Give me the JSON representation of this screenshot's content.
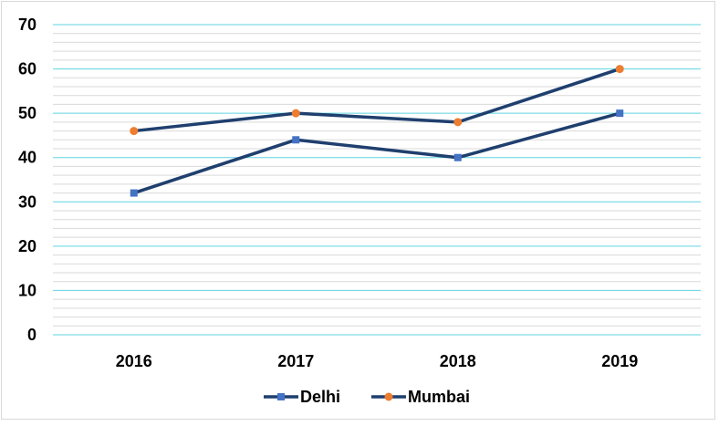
{
  "chart_data": {
    "type": "line",
    "categories": [
      "2016",
      "2017",
      "2018",
      "2019"
    ],
    "series": [
      {
        "name": "Delhi",
        "values": [
          32,
          44,
          40,
          50
        ],
        "line_color": "#1f3f6e",
        "marker": "square",
        "marker_color": "#4472c4"
      },
      {
        "name": "Mumbai",
        "values": [
          46,
          50,
          48,
          60
        ],
        "line_color": "#1f3f6e",
        "marker": "circle",
        "marker_color": "#ed7d31"
      }
    ],
    "title": "",
    "xlabel": "",
    "ylabel": "",
    "ylim": [
      0,
      70
    ],
    "yticks": [
      0,
      10,
      20,
      30,
      40,
      50,
      60,
      70
    ],
    "grid": {
      "major": true,
      "minor": true,
      "major_color": "#5fd3df",
      "minor_color": "#d9d9d9"
    },
    "legend_position": "bottom"
  }
}
